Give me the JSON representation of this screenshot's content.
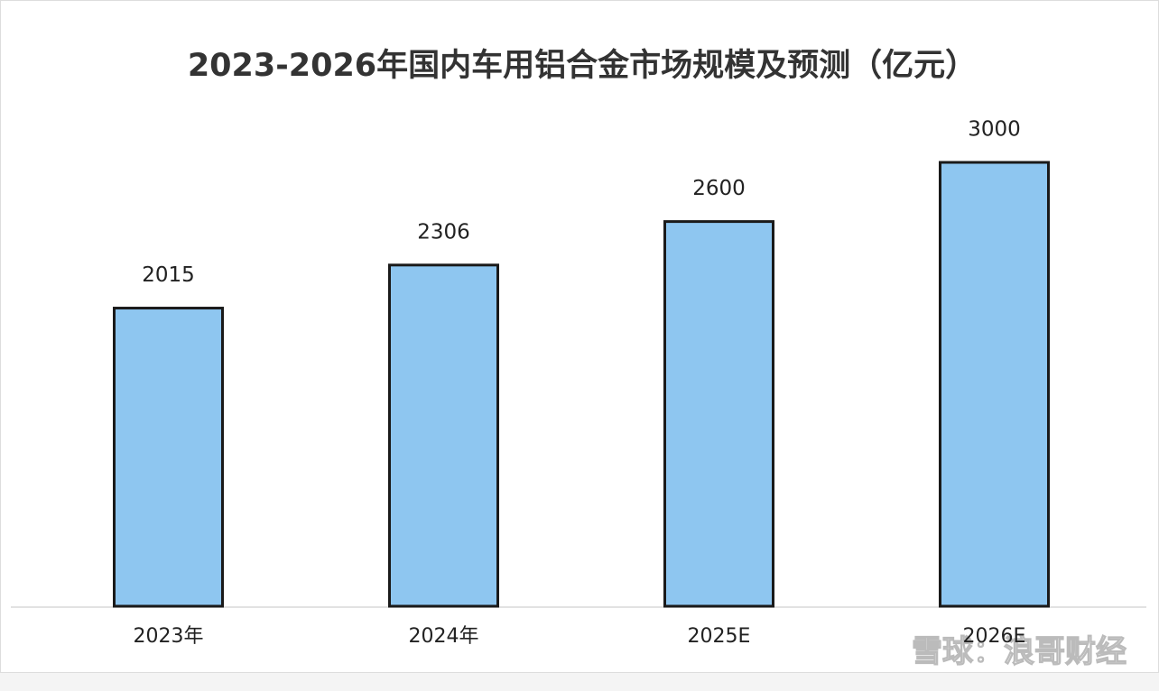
{
  "chart_data": {
    "type": "bar",
    "title": "2023-2026年国内车用铝合金市场规模及预测（亿元）",
    "categories": [
      "2023年",
      "2024年",
      "2025E",
      "2026E"
    ],
    "values": [
      2015,
      2306,
      2600,
      3000
    ],
    "color": "#8ec6f0",
    "ylim": [
      0,
      3000
    ]
  },
  "watermark": "雪球：浪哥财经"
}
